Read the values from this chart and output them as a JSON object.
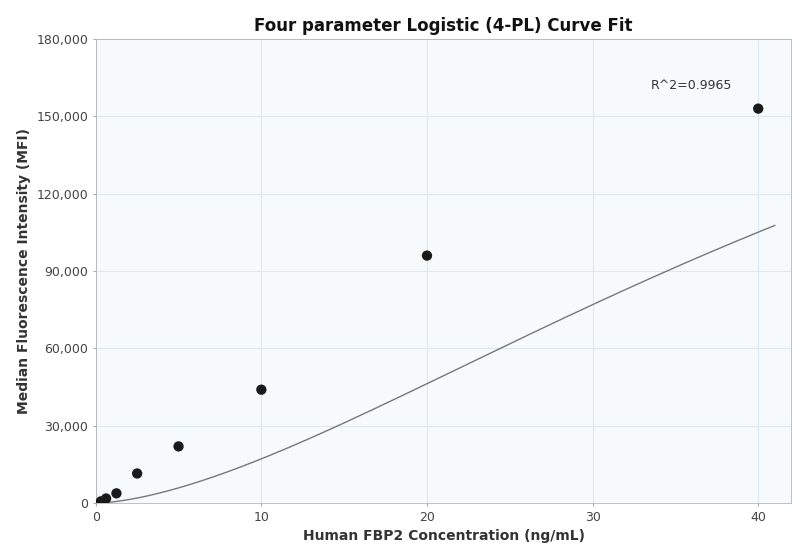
{
  "title": "Four parameter Logistic (4-PL) Curve Fit",
  "xlabel": "Human FBP2 Concentration (ng/mL)",
  "ylabel": "Median Fluorescence Intensity (MFI)",
  "scatter_x": [
    0.313,
    0.625,
    1.25,
    2.5,
    5.0,
    10.0,
    20.0,
    40.0
  ],
  "scatter_y": [
    700,
    1800,
    3800,
    11500,
    22000,
    44000,
    96000,
    153000
  ],
  "xlim": [
    0,
    42
  ],
  "ylim": [
    0,
    180000
  ],
  "yticks": [
    0,
    30000,
    60000,
    90000,
    120000,
    150000,
    180000
  ],
  "xticks": [
    0,
    10,
    20,
    30,
    40
  ],
  "r_squared": "R^2=0.9965",
  "r2_x": 33.5,
  "r2_y": 162000,
  "dot_color": "#1a1a1a",
  "dot_size": 55,
  "line_color": "#777777",
  "grid_color": "#dce8f0",
  "plot_bg_color": "#f7fafd",
  "background_color": "#ffffff",
  "4pl_A": 0,
  "4pl_B": 1.6,
  "4pl_C": 55.0,
  "4pl_D": 280000,
  "title_fontsize": 12,
  "label_fontsize": 10,
  "tick_fontsize": 9
}
